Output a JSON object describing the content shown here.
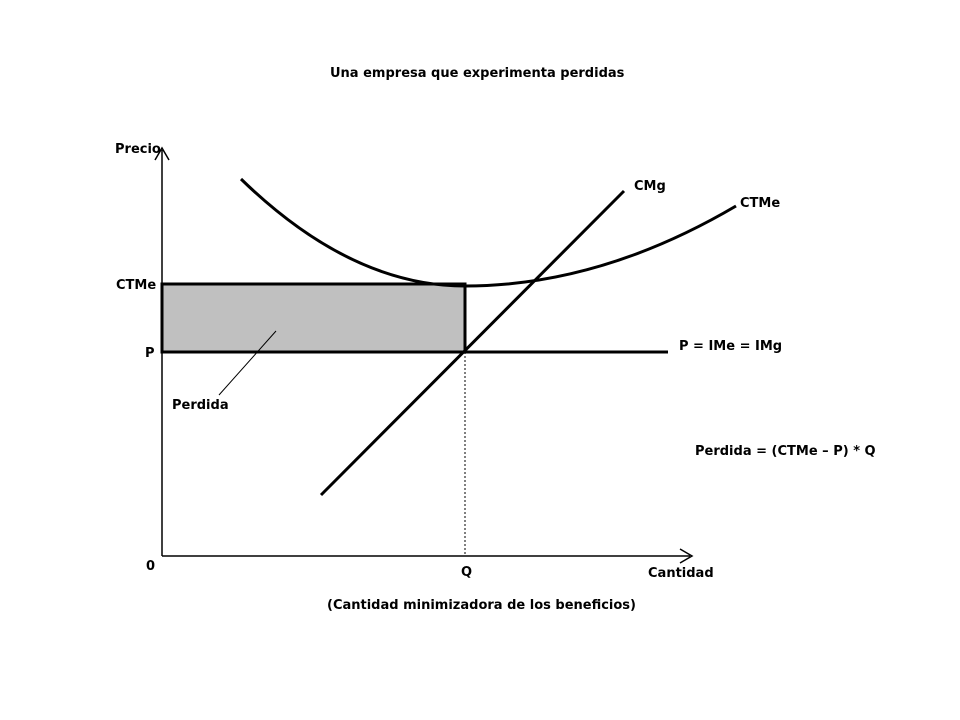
{
  "title": "Una empresa que experimenta perdidas",
  "axes": {
    "y_label": "Precio",
    "x_label": "Cantidad",
    "origin": "0",
    "x_subtitle": "(Cantidad minimizadora de los beneficios)"
  },
  "levels": {
    "ctme_tick": "CTMe",
    "p_tick": "P",
    "q_tick": "Q"
  },
  "curves": {
    "cmg": "CMg",
    "ctme": "CTMe",
    "demand": "P = IMe = IMg"
  },
  "area": {
    "label": "Perdida",
    "fill_color": "#c0c0c0"
  },
  "formula": "Perdida = (CTMe – P) * Q",
  "colors": {
    "line": "#000000",
    "background": "#ffffff"
  }
}
